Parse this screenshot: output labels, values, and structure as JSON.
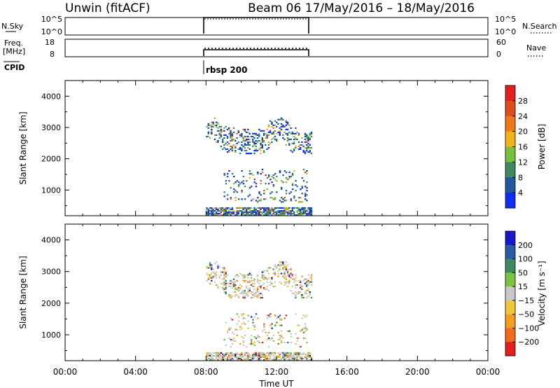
{
  "header": {
    "station": "Unwin (fitACF)",
    "beam_date": "Beam 06 17/May/2016 – 18/May/2016"
  },
  "top_panels": {
    "nsky": {
      "label": "N.Sky",
      "ticks_left": [
        "10^5",
        "10^0"
      ],
      "ticks_right": [
        "10^5",
        "10^0"
      ],
      "right_label": "N.Search"
    },
    "freq": {
      "label": "Freq.",
      "unit": "[MHz]",
      "ticks_left": [
        "18",
        "8"
      ],
      "ticks_right": [
        "60",
        "0"
      ],
      "right_label": "Nave"
    },
    "cpid": {
      "label": "CPID",
      "value": "rbsp 200"
    }
  },
  "time_axis": {
    "label": "Time UT",
    "ticks": [
      "00:00",
      "04:00",
      "08:00",
      "12:00",
      "16:00",
      "20:00",
      "00:00"
    ],
    "hours": [
      0,
      4,
      8,
      12,
      16,
      20,
      24
    ],
    "data_window_hours": [
      8,
      14
    ]
  },
  "chart_data": [
    {
      "type": "heatmap",
      "quantity": "Power",
      "ylabel": "Slant Range [km]",
      "ylim": [
        180,
        4500
      ],
      "yticks": [
        1000,
        2000,
        3000,
        4000
      ],
      "xlim_hours": [
        0,
        24
      ],
      "colorbar": {
        "label": "Power [dB]",
        "tick_labels": [
          "28",
          "24",
          "20",
          "16",
          "12",
          "8",
          "4"
        ],
        "colors": [
          "#e0201e",
          "#e04c1c",
          "#f07a18",
          "#f2b31c",
          "#79c03d",
          "#3c8a5d",
          "#2158a0",
          "#0f2ef2"
        ]
      },
      "regions": [
        {
          "hours": [
            8.0,
            14.0
          ],
          "range_km": [
            2150,
            3300
          ],
          "dominant": "low-power blue/green"
        },
        {
          "hours": [
            9.0,
            13.7
          ],
          "range_km": [
            600,
            1650
          ],
          "dominant": "low-power blue"
        },
        {
          "hours": [
            8.0,
            14.0
          ],
          "range_km": [
            180,
            450
          ],
          "dominant": "mixed power"
        }
      ]
    },
    {
      "type": "heatmap",
      "quantity": "Velocity",
      "ylabel": "Slant Range [km]",
      "ylim": [
        180,
        4500
      ],
      "yticks": [
        1000,
        2000,
        3000,
        4000
      ],
      "xlim_hours": [
        0,
        24
      ],
      "colorbar": {
        "label": "Velocity [m s⁻¹]",
        "tick_labels": [
          "200",
          "100",
          "50",
          "15",
          "−15",
          "−50",
          "−100",
          "−200"
        ],
        "colors": [
          "#1818c8",
          "#2c5aa8",
          "#3d8a5e",
          "#7cc343",
          "#c8c8c8",
          "#f1c73a",
          "#f59c22",
          "#f46a1c",
          "#e21e1e"
        ]
      },
      "regions": [
        {
          "hours": [
            8.0,
            14.0
          ],
          "range_km": [
            2150,
            3300
          ],
          "dominant": "near-zero grey"
        },
        {
          "hours": [
            9.0,
            13.7
          ],
          "range_km": [
            600,
            1650
          ],
          "dominant": "near-zero grey"
        },
        {
          "hours": [
            8.0,
            14.0
          ],
          "range_km": [
            180,
            450
          ],
          "dominant": "green/orange"
        }
      ]
    }
  ]
}
